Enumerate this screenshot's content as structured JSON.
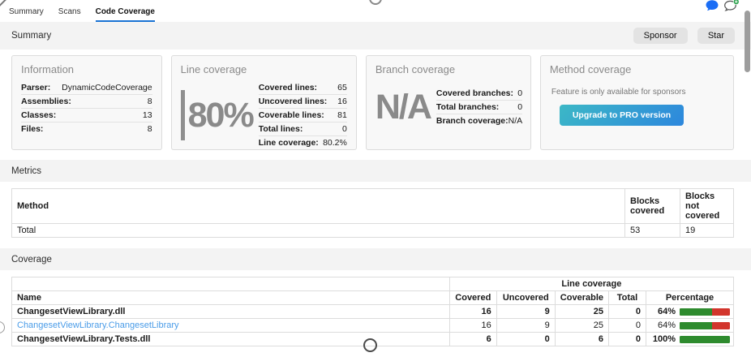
{
  "tabs": [
    {
      "label": "Summary",
      "active": false
    },
    {
      "label": "Scans",
      "active": false
    },
    {
      "label": "Code Coverage",
      "active": true
    }
  ],
  "header_icons": {
    "chat_color": "#1a6df5",
    "badge_color": "#2ea44f"
  },
  "summary": {
    "title": "Summary",
    "sponsor_button": "Sponsor",
    "star_button": "Star",
    "cards": {
      "information": {
        "title": "Information",
        "rows": [
          {
            "label": "Parser:",
            "value": "DynamicCodeCoverage"
          },
          {
            "label": "Assemblies:",
            "value": "8"
          },
          {
            "label": "Classes:",
            "value": "13"
          },
          {
            "label": "Files:",
            "value": "8"
          }
        ]
      },
      "line_coverage": {
        "title": "Line coverage",
        "big_value": "80%",
        "rows": [
          {
            "label": "Covered lines:",
            "value": "65"
          },
          {
            "label": "Uncovered lines:",
            "value": "16"
          },
          {
            "label": "Coverable lines:",
            "value": "81"
          },
          {
            "label": "Total lines:",
            "value": "0"
          },
          {
            "label": "Line coverage:",
            "value": "80.2%"
          }
        ]
      },
      "branch_coverage": {
        "title": "Branch coverage",
        "big_value": "N/A",
        "rows": [
          {
            "label": "Covered branches:",
            "value": "0"
          },
          {
            "label": "Total branches:",
            "value": "0"
          },
          {
            "label": "Branch coverage:",
            "value": "N/A"
          }
        ]
      },
      "method_coverage": {
        "title": "Method coverage",
        "message": "Feature is only available for sponsors",
        "button_label": "Upgrade to PRO version"
      }
    }
  },
  "metrics": {
    "title": "Metrics",
    "table": {
      "headers": [
        "Method",
        "Blocks covered",
        "Blocks not covered"
      ],
      "rows": [
        [
          "Total",
          "53",
          "19"
        ]
      ]
    }
  },
  "coverage": {
    "title": "Coverage",
    "table": {
      "group_header": "Line coverage",
      "headers": [
        "Name",
        "Covered",
        "Uncovered",
        "Coverable",
        "Total",
        "Percentage"
      ],
      "rows": [
        {
          "name": "ChangesetViewLibrary.dll",
          "covered": "16",
          "uncovered": "9",
          "coverable": "25",
          "total": "0",
          "percentage": "64%",
          "bar_percent": 64,
          "style": "assembly"
        },
        {
          "name": "ChangesetViewLibrary.ChangesetLibrary",
          "covered": "16",
          "uncovered": "9",
          "coverable": "25",
          "total": "0",
          "percentage": "64%",
          "bar_percent": 64,
          "style": "class-link"
        },
        {
          "name": "ChangesetViewLibrary.Tests.dll",
          "covered": "6",
          "uncovered": "0",
          "coverable": "6",
          "total": "0",
          "percentage": "100%",
          "bar_percent": 100,
          "style": "assembly"
        }
      ]
    }
  },
  "colors": {
    "tab_underline": "#1b74d4",
    "link": "#4a9ce8",
    "bar_green": "#2e8b2e",
    "bar_red": "#d2352c",
    "button_gradient_start": "#3cb8c6",
    "button_gradient_end": "#2d87dd"
  }
}
